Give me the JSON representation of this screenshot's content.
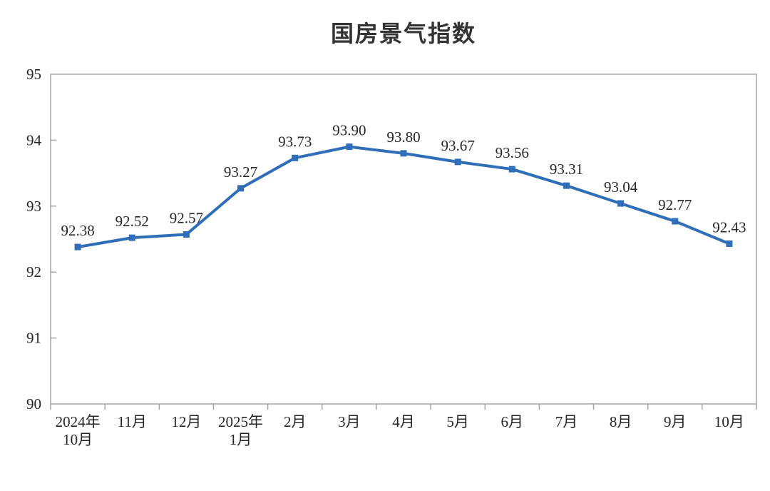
{
  "chart_data": {
    "type": "line",
    "title": "国房景气指数",
    "categories": [
      "2024年\n10月",
      "11月",
      "12月",
      "2025年\n1月",
      "2月",
      "3月",
      "4月",
      "5月",
      "6月",
      "7月",
      "8月",
      "9月",
      "10月"
    ],
    "values": [
      92.38,
      92.52,
      92.57,
      93.27,
      93.73,
      93.9,
      93.8,
      93.67,
      93.56,
      93.31,
      93.04,
      92.77,
      92.43
    ],
    "value_labels": [
      "92.38",
      "92.52",
      "92.57",
      "93.27",
      "93.73",
      "93.90",
      "93.80",
      "93.67",
      "93.56",
      "93.31",
      "93.04",
      "92.77",
      "92.43"
    ],
    "ylim": [
      90,
      95
    ],
    "yticks": [
      90,
      91,
      92,
      93,
      94,
      95
    ],
    "grid": false,
    "legend": "none",
    "colors": {
      "line": "#2F6EB8",
      "marker": "#2F6EB8",
      "value_label": "#262626",
      "tick_label": "#262626",
      "axis_line": "#A6A6A6",
      "title": "#333333"
    }
  }
}
